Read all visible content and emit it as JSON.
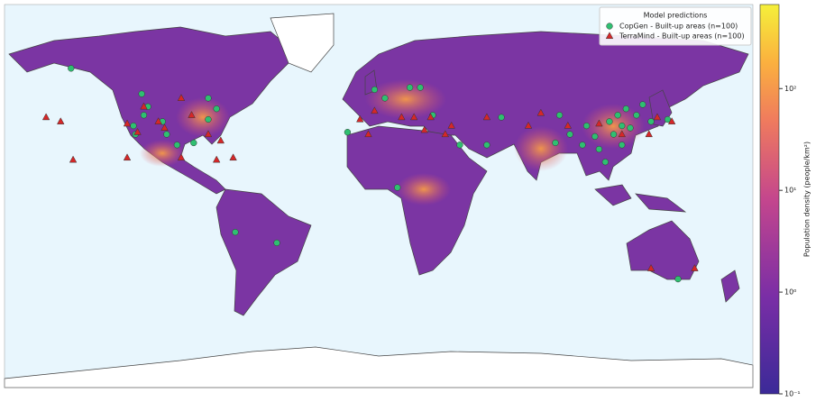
{
  "chart_data": {
    "type": "scatter",
    "xlim": [
      -180,
      180
    ],
    "ylim": [
      -90,
      90
    ],
    "legend_title": "Model predictions",
    "legend_position": "upper right",
    "series": [
      {
        "name": "CopGen - Built-up areas (n=100)",
        "color": "#2fbf71",
        "marker": "circle",
        "x": [
          -148,
          -114,
          -118,
          -113,
          -111,
          -117,
          -102,
          -97,
          -89,
          -82,
          -78,
          -82,
          -104,
          -69,
          -49,
          -15,
          9,
          -2,
          3,
          15,
          20,
          26,
          39,
          52,
          59,
          87,
          85,
          92,
          100,
          104,
          106,
          109,
          113,
          117,
          121,
          124,
          127,
          119,
          115,
          111,
          117,
          131,
          144,
          139,
          98
        ],
        "values": [
          60,
          48,
          33,
          38,
          42,
          29,
          29,
          24,
          25,
          36,
          41,
          46,
          35,
          -17,
          -22,
          30,
          4,
          50,
          46,
          51,
          51,
          38,
          24,
          24,
          37,
          38,
          25,
          29,
          33,
          28,
          22,
          16,
          29,
          33,
          32,
          38,
          43,
          41,
          38,
          35,
          24,
          35,
          -39,
          36,
          24
        ]
      },
      {
        "name": "TerraMind - Built-up areas (n=100)",
        "color": "#d62728",
        "marker": "triangle",
        "x": [
          -160,
          -153,
          -147,
          -121,
          -121,
          -116,
          -113,
          -106,
          -103,
          -95,
          -90,
          -82,
          -76,
          -70,
          -95,
          -78,
          -9,
          -5,
          -2,
          11,
          17,
          22,
          25,
          32,
          35,
          52,
          72,
          78,
          91,
          106,
          117,
          130,
          134,
          141,
          131,
          152
        ],
        "values": [
          37,
          35,
          17,
          18,
          34,
          30,
          42,
          35,
          32,
          46,
          38,
          29,
          26,
          18,
          18,
          17,
          36,
          29,
          40,
          37,
          37,
          31,
          37,
          29,
          33,
          37,
          33,
          39,
          33,
          34,
          29,
          29,
          37,
          35,
          -34,
          -34
        ]
      }
    ],
    "colorbar": {
      "label": "Population density (people/km²)",
      "scale": "log",
      "lim": [
        0.1,
        670
      ],
      "ticks": [
        {
          "value": 0.1,
          "label": "10⁻¹"
        },
        {
          "value": 1,
          "label": "10⁰"
        },
        {
          "value": 10,
          "label": "10¹"
        },
        {
          "value": 100,
          "label": "10²"
        }
      ]
    }
  }
}
